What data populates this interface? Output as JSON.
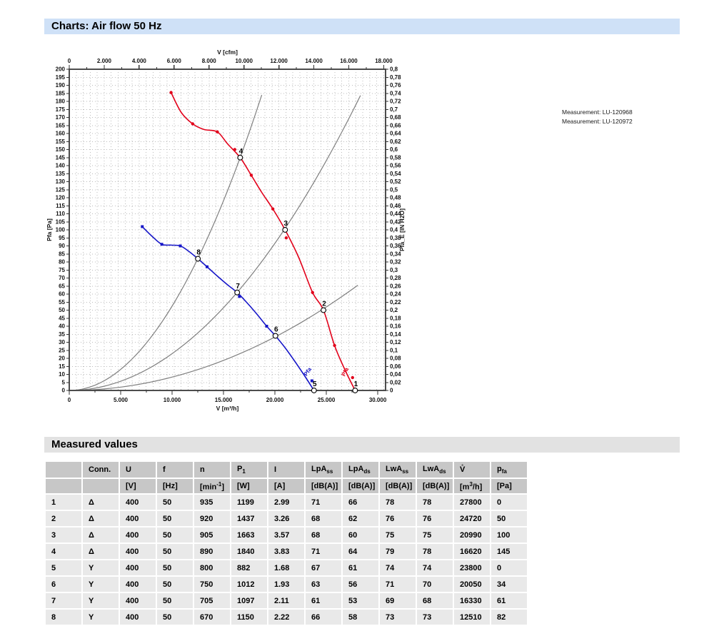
{
  "page": {
    "title": "Charts: Air flow 50 Hz",
    "measured_section_title": "Measured values"
  },
  "legend": {
    "items": [
      {
        "label": "Measurement: LU-120968"
      },
      {
        "label": "Measurement: LU-120972"
      }
    ]
  },
  "chart_data": {
    "type": "line",
    "top_axis": {
      "label": "V [cfm]",
      "tick_values": [
        0,
        2000,
        4000,
        6000,
        8000,
        10000,
        12000,
        14000,
        16000,
        18000
      ],
      "tick_labels": [
        "0",
        "2.000",
        "4.000",
        "6.000",
        "8.000",
        "10.000",
        "12.000",
        "14.000",
        "16.000",
        "18.000"
      ],
      "minor_step": 1000,
      "cfm_per_m3h": 0.588578
    },
    "bottom_axis": {
      "label": "V [m³/h]",
      "max": 30760,
      "tick_values": [
        0,
        5000,
        10000,
        15000,
        20000,
        25000,
        30000
      ],
      "tick_labels": [
        "0",
        "5.000",
        "10.000",
        "15.000",
        "20.000",
        "25.000",
        "30.000"
      ],
      "minor_step": 2500
    },
    "left_axis": {
      "label": "Pfa [Pa]",
      "min": 0,
      "max": 200,
      "step": 5
    },
    "right_axis": {
      "label": "Pfa_E [IN H2O]",
      "min": 0,
      "max": 0.8,
      "step": 0.02
    },
    "grid": {
      "v_step_cfm": 400,
      "h_step_pa": 5,
      "color": "#bcbcbc"
    },
    "colors": {
      "frame": "#4d4d4d",
      "ticks": "#333333",
      "system_curve": "#7f7f7f",
      "red": "#e2001a",
      "blue": "#1616c8"
    },
    "series": [
      {
        "name": "Measurement: LU-120968",
        "connection": "delta",
        "color": "#e2001a",
        "end_label": "Pfa",
        "end_label_pos": {
          "v": 26980,
          "pa": 11,
          "angle": -63
        },
        "path_points": [
          [
            9900,
            185.5
          ],
          [
            10900,
            173
          ],
          [
            12000,
            166
          ],
          [
            13100,
            162.5
          ],
          [
            14400,
            161
          ],
          [
            15400,
            153.5
          ],
          [
            16620,
            145
          ],
          [
            17700,
            134
          ],
          [
            18700,
            123.5
          ],
          [
            19800,
            113
          ],
          [
            20990,
            100
          ],
          [
            22300,
            83
          ],
          [
            23660,
            61
          ],
          [
            24720,
            50
          ],
          [
            25800,
            28
          ],
          [
            26800,
            13
          ],
          [
            27800,
            0
          ]
        ],
        "raw_dots": [
          [
            9900,
            185.5
          ],
          [
            12000,
            166
          ],
          [
            14400,
            161
          ],
          [
            16100,
            150
          ],
          [
            17700,
            134
          ],
          [
            19800,
            113
          ],
          [
            21100,
            95
          ],
          [
            23660,
            61
          ],
          [
            25800,
            28
          ],
          [
            27550,
            8
          ]
        ],
        "labeled_points": [
          {
            "label": "1",
            "v": 27800,
            "pa": 0
          },
          {
            "label": "2",
            "v": 24720,
            "pa": 50
          },
          {
            "label": "3",
            "v": 20990,
            "pa": 100
          },
          {
            "label": "4",
            "v": 16620,
            "pa": 145
          }
        ]
      },
      {
        "name": "Measurement: LU-120972",
        "connection": "Y",
        "color": "#1616c8",
        "end_label": "Pfa",
        "end_label_pos": {
          "v": 23330,
          "pa": 11,
          "angle": -55
        },
        "path_points": [
          [
            7100,
            102
          ],
          [
            8050,
            96
          ],
          [
            9000,
            91
          ],
          [
            9900,
            90.5
          ],
          [
            10800,
            90
          ],
          [
            11650,
            86.5
          ],
          [
            12510,
            82
          ],
          [
            13400,
            77
          ],
          [
            14350,
            71.5
          ],
          [
            15350,
            66
          ],
          [
            16330,
            61
          ],
          [
            17300,
            54.5
          ],
          [
            18250,
            47.5
          ],
          [
            19200,
            40
          ],
          [
            20050,
            34
          ],
          [
            21000,
            26.5
          ],
          [
            21950,
            18
          ],
          [
            22900,
            9
          ],
          [
            23800,
            0
          ]
        ],
        "raw_dots": [
          [
            7100,
            102
          ],
          [
            9000,
            91
          ],
          [
            10800,
            90
          ],
          [
            13400,
            77
          ],
          [
            16550,
            58.5
          ],
          [
            19200,
            40
          ],
          [
            23600,
            6
          ]
        ],
        "labeled_points": [
          {
            "label": "5",
            "v": 23800,
            "pa": 0
          },
          {
            "label": "6",
            "v": 20050,
            "pa": 34
          },
          {
            "label": "7",
            "v": 16330,
            "pa": 61
          },
          {
            "label": "8",
            "v": 12510,
            "pa": 82
          }
        ]
      }
    ],
    "system_curves": [
      {
        "k": 5.25e-07,
        "v_end": 18720
      },
      {
        "k": 2.29e-07,
        "v_end": 28320
      },
      {
        "k": 8.32e-08,
        "v_end": 28060
      }
    ]
  },
  "table": {
    "columns": [
      {
        "header": "",
        "unit_pre": ""
      },
      {
        "header": "Conn.",
        "unit_pre": ""
      },
      {
        "header": "U",
        "unit_pre": "[V]"
      },
      {
        "header": "f",
        "unit_pre": "[Hz]"
      },
      {
        "header": "n",
        "unit_pre": "[min",
        "unit_sup": "-1",
        "unit_post": "]"
      },
      {
        "header": "P",
        "header_sub": "1",
        "unit_pre": "[W]"
      },
      {
        "header": "I",
        "unit_pre": "[A]"
      },
      {
        "header": "LpA",
        "header_sub": "ss",
        "unit_pre": "[dB(A)]"
      },
      {
        "header": "LpA",
        "header_sub": "ds",
        "unit_pre": "[dB(A)]"
      },
      {
        "header": "LwA",
        "header_sub": "ss",
        "unit_pre": "[dB(A)]"
      },
      {
        "header": "LwA",
        "header_sub": "ds",
        "unit_pre": "[dB(A)]"
      },
      {
        "header": "V̊",
        "unit_pre": "[m",
        "unit_sup": "3",
        "unit_post": "/h]"
      },
      {
        "header": "p",
        "header_sub": "fa",
        "unit_pre": "[Pa]"
      }
    ],
    "rows": [
      [
        "1",
        "Δ",
        "400",
        "50",
        "935",
        "1199",
        "2.99",
        "71",
        "66",
        "78",
        "78",
        "27800",
        "0"
      ],
      [
        "2",
        "Δ",
        "400",
        "50",
        "920",
        "1437",
        "3.26",
        "68",
        "62",
        "76",
        "76",
        "24720",
        "50"
      ],
      [
        "3",
        "Δ",
        "400",
        "50",
        "905",
        "1663",
        "3.57",
        "68",
        "60",
        "75",
        "75",
        "20990",
        "100"
      ],
      [
        "4",
        "Δ",
        "400",
        "50",
        "890",
        "1840",
        "3.83",
        "71",
        "64",
        "79",
        "78",
        "16620",
        "145"
      ],
      [
        "5",
        "Y",
        "400",
        "50",
        "800",
        "882",
        "1.68",
        "67",
        "61",
        "74",
        "74",
        "23800",
        "0"
      ],
      [
        "6",
        "Y",
        "400",
        "50",
        "750",
        "1012",
        "1.93",
        "63",
        "56",
        "71",
        "70",
        "20050",
        "34"
      ],
      [
        "7",
        "Y",
        "400",
        "50",
        "705",
        "1097",
        "2.11",
        "61",
        "53",
        "69",
        "68",
        "16330",
        "61"
      ],
      [
        "8",
        "Y",
        "400",
        "50",
        "670",
        "1150",
        "2.22",
        "66",
        "58",
        "73",
        "73",
        "12510",
        "82"
      ]
    ]
  }
}
